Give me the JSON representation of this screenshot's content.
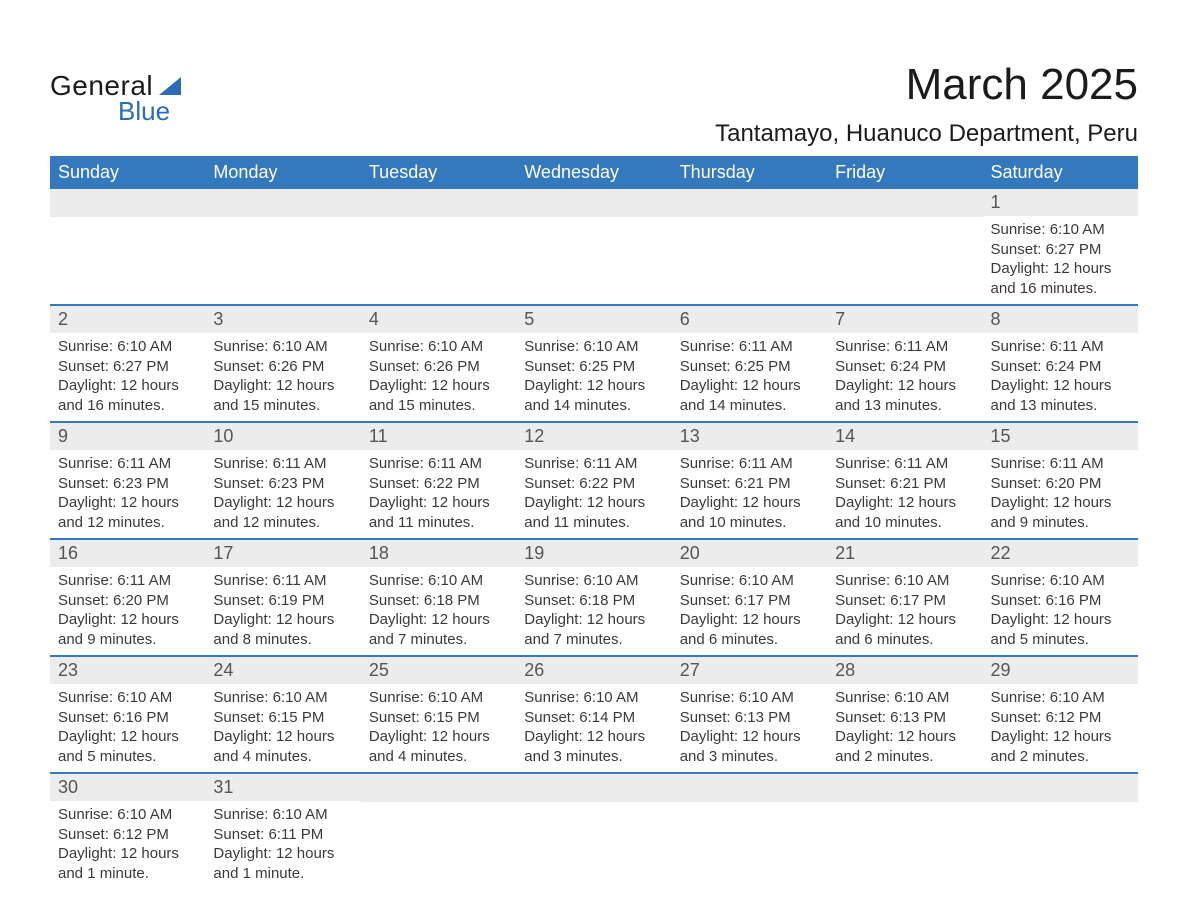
{
  "brand": {
    "general": "General",
    "blue": "Blue"
  },
  "title": "March 2025",
  "location": "Tantamayo, Huanuco Department, Peru",
  "colors": {
    "header_bg": "#3478bd",
    "header_text": "#ffffff",
    "daynum_bg": "#ececec",
    "daynum_text": "#555555",
    "body_text": "#3a3a3a",
    "row_border": "#3478bd",
    "logo_accent": "#2b6db5"
  },
  "weekdays": [
    "Sunday",
    "Monday",
    "Tuesday",
    "Wednesday",
    "Thursday",
    "Friday",
    "Saturday"
  ],
  "weeks": [
    [
      {
        "blank": true
      },
      {
        "blank": true
      },
      {
        "blank": true
      },
      {
        "blank": true
      },
      {
        "blank": true
      },
      {
        "blank": true
      },
      {
        "num": "1",
        "sunrise": "Sunrise: 6:10 AM",
        "sunset": "Sunset: 6:27 PM",
        "day1": "Daylight: 12 hours",
        "day2": "and 16 minutes."
      }
    ],
    [
      {
        "num": "2",
        "sunrise": "Sunrise: 6:10 AM",
        "sunset": "Sunset: 6:27 PM",
        "day1": "Daylight: 12 hours",
        "day2": "and 16 minutes."
      },
      {
        "num": "3",
        "sunrise": "Sunrise: 6:10 AM",
        "sunset": "Sunset: 6:26 PM",
        "day1": "Daylight: 12 hours",
        "day2": "and 15 minutes."
      },
      {
        "num": "4",
        "sunrise": "Sunrise: 6:10 AM",
        "sunset": "Sunset: 6:26 PM",
        "day1": "Daylight: 12 hours",
        "day2": "and 15 minutes."
      },
      {
        "num": "5",
        "sunrise": "Sunrise: 6:10 AM",
        "sunset": "Sunset: 6:25 PM",
        "day1": "Daylight: 12 hours",
        "day2": "and 14 minutes."
      },
      {
        "num": "6",
        "sunrise": "Sunrise: 6:11 AM",
        "sunset": "Sunset: 6:25 PM",
        "day1": "Daylight: 12 hours",
        "day2": "and 14 minutes."
      },
      {
        "num": "7",
        "sunrise": "Sunrise: 6:11 AM",
        "sunset": "Sunset: 6:24 PM",
        "day1": "Daylight: 12 hours",
        "day2": "and 13 minutes."
      },
      {
        "num": "8",
        "sunrise": "Sunrise: 6:11 AM",
        "sunset": "Sunset: 6:24 PM",
        "day1": "Daylight: 12 hours",
        "day2": "and 13 minutes."
      }
    ],
    [
      {
        "num": "9",
        "sunrise": "Sunrise: 6:11 AM",
        "sunset": "Sunset: 6:23 PM",
        "day1": "Daylight: 12 hours",
        "day2": "and 12 minutes."
      },
      {
        "num": "10",
        "sunrise": "Sunrise: 6:11 AM",
        "sunset": "Sunset: 6:23 PM",
        "day1": "Daylight: 12 hours",
        "day2": "and 12 minutes."
      },
      {
        "num": "11",
        "sunrise": "Sunrise: 6:11 AM",
        "sunset": "Sunset: 6:22 PM",
        "day1": "Daylight: 12 hours",
        "day2": "and 11 minutes."
      },
      {
        "num": "12",
        "sunrise": "Sunrise: 6:11 AM",
        "sunset": "Sunset: 6:22 PM",
        "day1": "Daylight: 12 hours",
        "day2": "and 11 minutes."
      },
      {
        "num": "13",
        "sunrise": "Sunrise: 6:11 AM",
        "sunset": "Sunset: 6:21 PM",
        "day1": "Daylight: 12 hours",
        "day2": "and 10 minutes."
      },
      {
        "num": "14",
        "sunrise": "Sunrise: 6:11 AM",
        "sunset": "Sunset: 6:21 PM",
        "day1": "Daylight: 12 hours",
        "day2": "and 10 minutes."
      },
      {
        "num": "15",
        "sunrise": "Sunrise: 6:11 AM",
        "sunset": "Sunset: 6:20 PM",
        "day1": "Daylight: 12 hours",
        "day2": "and 9 minutes."
      }
    ],
    [
      {
        "num": "16",
        "sunrise": "Sunrise: 6:11 AM",
        "sunset": "Sunset: 6:20 PM",
        "day1": "Daylight: 12 hours",
        "day2": "and 9 minutes."
      },
      {
        "num": "17",
        "sunrise": "Sunrise: 6:11 AM",
        "sunset": "Sunset: 6:19 PM",
        "day1": "Daylight: 12 hours",
        "day2": "and 8 minutes."
      },
      {
        "num": "18",
        "sunrise": "Sunrise: 6:10 AM",
        "sunset": "Sunset: 6:18 PM",
        "day1": "Daylight: 12 hours",
        "day2": "and 7 minutes."
      },
      {
        "num": "19",
        "sunrise": "Sunrise: 6:10 AM",
        "sunset": "Sunset: 6:18 PM",
        "day1": "Daylight: 12 hours",
        "day2": "and 7 minutes."
      },
      {
        "num": "20",
        "sunrise": "Sunrise: 6:10 AM",
        "sunset": "Sunset: 6:17 PM",
        "day1": "Daylight: 12 hours",
        "day2": "and 6 minutes."
      },
      {
        "num": "21",
        "sunrise": "Sunrise: 6:10 AM",
        "sunset": "Sunset: 6:17 PM",
        "day1": "Daylight: 12 hours",
        "day2": "and 6 minutes."
      },
      {
        "num": "22",
        "sunrise": "Sunrise: 6:10 AM",
        "sunset": "Sunset: 6:16 PM",
        "day1": "Daylight: 12 hours",
        "day2": "and 5 minutes."
      }
    ],
    [
      {
        "num": "23",
        "sunrise": "Sunrise: 6:10 AM",
        "sunset": "Sunset: 6:16 PM",
        "day1": "Daylight: 12 hours",
        "day2": "and 5 minutes."
      },
      {
        "num": "24",
        "sunrise": "Sunrise: 6:10 AM",
        "sunset": "Sunset: 6:15 PM",
        "day1": "Daylight: 12 hours",
        "day2": "and 4 minutes."
      },
      {
        "num": "25",
        "sunrise": "Sunrise: 6:10 AM",
        "sunset": "Sunset: 6:15 PM",
        "day1": "Daylight: 12 hours",
        "day2": "and 4 minutes."
      },
      {
        "num": "26",
        "sunrise": "Sunrise: 6:10 AM",
        "sunset": "Sunset: 6:14 PM",
        "day1": "Daylight: 12 hours",
        "day2": "and 3 minutes."
      },
      {
        "num": "27",
        "sunrise": "Sunrise: 6:10 AM",
        "sunset": "Sunset: 6:13 PM",
        "day1": "Daylight: 12 hours",
        "day2": "and 3 minutes."
      },
      {
        "num": "28",
        "sunrise": "Sunrise: 6:10 AM",
        "sunset": "Sunset: 6:13 PM",
        "day1": "Daylight: 12 hours",
        "day2": "and 2 minutes."
      },
      {
        "num": "29",
        "sunrise": "Sunrise: 6:10 AM",
        "sunset": "Sunset: 6:12 PM",
        "day1": "Daylight: 12 hours",
        "day2": "and 2 minutes."
      }
    ],
    [
      {
        "num": "30",
        "sunrise": "Sunrise: 6:10 AM",
        "sunset": "Sunset: 6:12 PM",
        "day1": "Daylight: 12 hours",
        "day2": "and 1 minute."
      },
      {
        "num": "31",
        "sunrise": "Sunrise: 6:10 AM",
        "sunset": "Sunset: 6:11 PM",
        "day1": "Daylight: 12 hours",
        "day2": "and 1 minute."
      },
      {
        "blank": true
      },
      {
        "blank": true
      },
      {
        "blank": true
      },
      {
        "blank": true
      },
      {
        "blank": true
      }
    ]
  ]
}
